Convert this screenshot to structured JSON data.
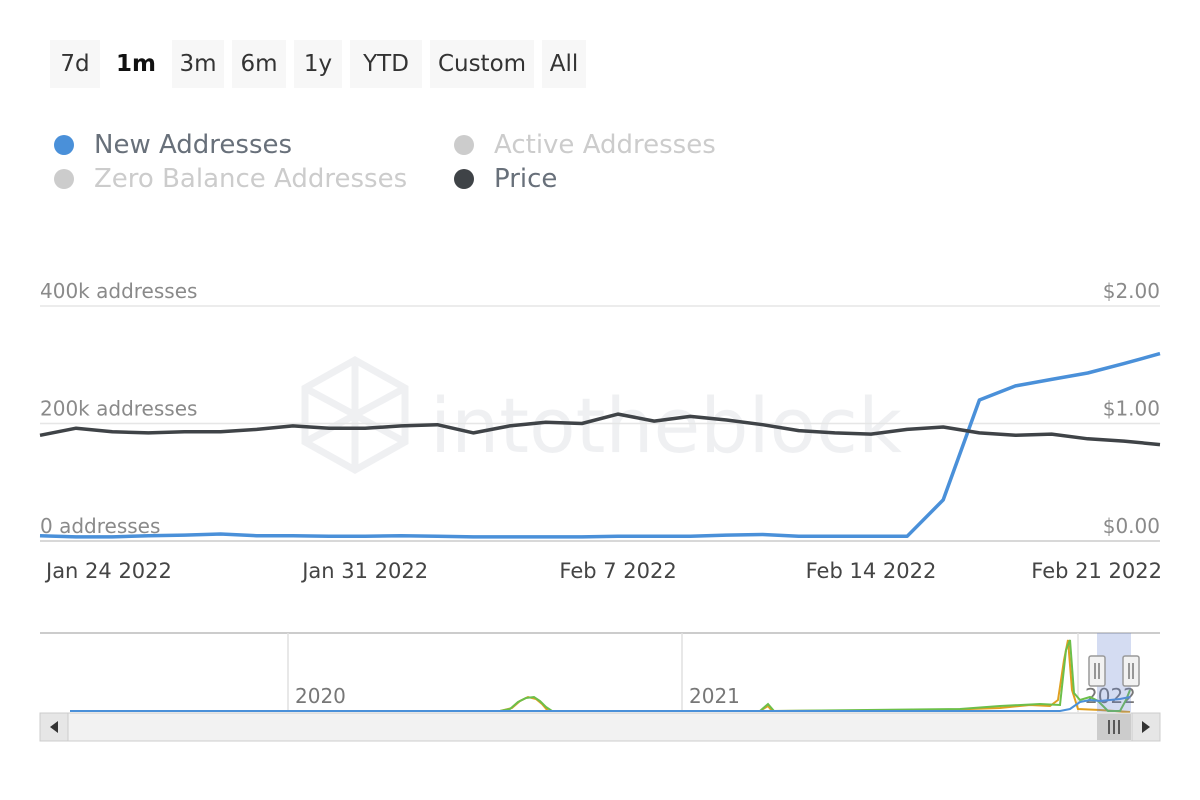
{
  "range_selector": {
    "buttons": [
      "7d",
      "1m",
      "3m",
      "6m",
      "1y",
      "YTD",
      "Custom",
      "All"
    ],
    "selected": "1m"
  },
  "legend": [
    {
      "label": "New Addresses",
      "color": "#4a90d9",
      "enabled": true
    },
    {
      "label": "Active Addresses",
      "color": "#cccccc",
      "enabled": false
    },
    {
      "label": "Zero Balance Addresses",
      "color": "#cccccc",
      "enabled": false
    },
    {
      "label": "Price",
      "color": "#3f4347",
      "enabled": true
    }
  ],
  "watermark": "intotheblock",
  "chart_data": {
    "type": "line",
    "x": [
      "Jan 22 2022",
      "Jan 23 2022",
      "Jan 24 2022",
      "Jan 25 2022",
      "Jan 26 2022",
      "Jan 27 2022",
      "Jan 28 2022",
      "Jan 29 2022",
      "Jan 30 2022",
      "Jan 31 2022",
      "Feb 1 2022",
      "Feb 2 2022",
      "Feb 3 2022",
      "Feb 4 2022",
      "Feb 5 2022",
      "Feb 6 2022",
      "Feb 7 2022",
      "Feb 8 2022",
      "Feb 9 2022",
      "Feb 10 2022",
      "Feb 11 2022",
      "Feb 12 2022",
      "Feb 13 2022",
      "Feb 14 2022",
      "Feb 15 2022",
      "Feb 16 2022",
      "Feb 17 2022",
      "Feb 18 2022",
      "Feb 19 2022",
      "Feb 20 2022",
      "Feb 21 2022",
      "Feb 22 2022"
    ],
    "x_ticks": [
      "Jan 24 2022",
      "Jan 31 2022",
      "Feb 7 2022",
      "Feb 14 2022",
      "Feb 21 2022"
    ],
    "series": [
      {
        "name": "New Addresses",
        "axis": "left",
        "color": "#4a90d9",
        "values": [
          9000,
          7000,
          7000,
          9000,
          10000,
          12000,
          9000,
          9000,
          8000,
          8000,
          9000,
          8000,
          7000,
          7000,
          7000,
          7000,
          8000,
          8000,
          8000,
          10000,
          11000,
          8000,
          8000,
          8000,
          8000,
          70000,
          240000,
          264000,
          275000,
          286000,
          302000,
          319000
        ]
      },
      {
        "name": "Price",
        "axis": "right",
        "color": "#3f4347",
        "values": [
          0.9,
          0.96,
          0.93,
          0.92,
          0.93,
          0.93,
          0.95,
          0.98,
          0.96,
          0.96,
          0.98,
          0.99,
          0.92,
          0.98,
          1.01,
          1.0,
          1.08,
          1.02,
          1.06,
          1.03,
          0.99,
          0.94,
          0.92,
          0.91,
          0.95,
          0.97,
          0.92,
          0.9,
          0.91,
          0.87,
          0.85,
          0.82
        ]
      }
    ],
    "y_left": {
      "ticks": [
        "0 addresses",
        "200k addresses",
        "400k addresses"
      ],
      "min": 0,
      "max": 400000
    },
    "y_right": {
      "ticks": [
        "$0.00",
        "$1.00",
        "$2.00"
      ],
      "min": 0,
      "max": 2
    },
    "grid": true
  },
  "navigator": {
    "year_labels": [
      "2020",
      "2021",
      "2022"
    ]
  }
}
